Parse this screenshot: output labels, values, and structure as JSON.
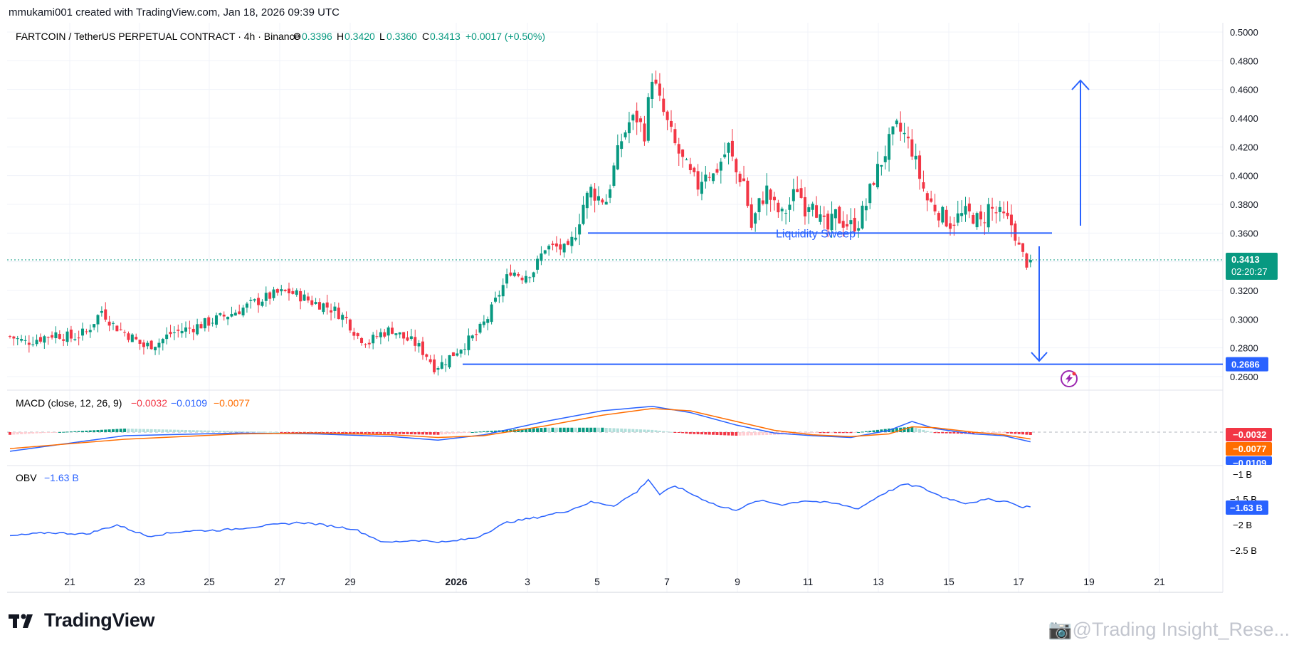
{
  "header": {
    "credit": "mmukami001 created with TradingView.com, Jan 18, 2026 09:39 UTC",
    "symbol": "FARTCOIN / TetherUS PERPETUAL CONTRACT · 4h · Binance",
    "o_label": "O",
    "o_value": "0.3396",
    "h_label": "H",
    "h_value": "0.3420",
    "l_label": "L",
    "l_value": "0.3360",
    "c_label": "C",
    "c_value": "0.3413",
    "change": "+0.0017 (+0.50%)"
  },
  "colors": {
    "up": "#089981",
    "down": "#f23645",
    "blue": "#2962ff",
    "orange": "#ff6d00",
    "macd_up_light": "#b2dfdb",
    "macd_down_light": "#ffcdd2",
    "grid": "#f0f3fa",
    "axis_text": "#131722"
  },
  "annotations": {
    "liquidity_sweep": "Liquidity Sweep",
    "current_price": "0.3413",
    "countdown": "02:20:27",
    "target_price": "0.2686",
    "support_level": 0.36,
    "target_level": 0.2686,
    "lightning_icon": "lightning-icon"
  },
  "macd": {
    "label": "MACD (close, 12, 26, 9)",
    "v1": "−0.0032",
    "v2": "−0.0109",
    "v3": "−0.0077",
    "axis_labels": [
      "−0.0032",
      "−0.0077",
      "−0.0109"
    ]
  },
  "obv": {
    "label": "OBV",
    "value": "−1.63 B",
    "axis_labels": [
      "−1 B",
      "−1.5 B",
      "−1.63 B",
      "−2 B",
      "−2.5 B"
    ]
  },
  "brand": {
    "name": "TradingView",
    "watermark": "@Trading Insight_Rese..."
  },
  "chart_data": {
    "type": "candlestick",
    "price_axis": [
      "0.5000",
      "0.4800",
      "0.4600",
      "0.4400",
      "0.4200",
      "0.4000",
      "0.3800",
      "0.3600",
      "0.3400",
      "0.3200",
      "0.3000",
      "0.2800",
      "0.2600"
    ],
    "ylim": [
      0.256,
      0.502
    ],
    "x_ticks": [
      "21",
      "23",
      "25",
      "27",
      "29",
      "2026",
      "3",
      "5",
      "7",
      "9",
      "11",
      "13",
      "15",
      "17",
      "19",
      "21"
    ],
    "waypoints": [
      [
        0,
        0.288
      ],
      [
        4,
        0.284
      ],
      [
        8,
        0.287
      ],
      [
        12,
        0.29
      ],
      [
        16,
        0.287
      ],
      [
        20,
        0.291
      ],
      [
        24,
        0.306
      ],
      [
        27,
        0.296
      ],
      [
        31,
        0.289
      ],
      [
        35,
        0.281
      ],
      [
        39,
        0.284
      ],
      [
        42,
        0.29
      ],
      [
        46,
        0.293
      ],
      [
        50,
        0.296
      ],
      [
        54,
        0.3
      ],
      [
        58,
        0.304
      ],
      [
        62,
        0.309
      ],
      [
        66,
        0.314
      ],
      [
        70,
        0.318
      ],
      [
        73,
        0.319
      ],
      [
        76,
        0.316
      ],
      [
        79,
        0.312
      ],
      [
        82,
        0.31
      ],
      [
        85,
        0.306
      ],
      [
        88,
        0.3
      ],
      [
        91,
        0.288
      ],
      [
        94,
        0.284
      ],
      [
        97,
        0.29
      ],
      [
        100,
        0.293
      ],
      [
        103,
        0.287
      ],
      [
        106,
        0.283
      ],
      [
        109,
        0.275
      ],
      [
        111,
        0.267
      ],
      [
        113,
        0.269
      ],
      [
        116,
        0.276
      ],
      [
        119,
        0.283
      ],
      [
        122,
        0.289
      ],
      [
        125,
        0.301
      ],
      [
        128,
        0.318
      ],
      [
        131,
        0.334
      ],
      [
        134,
        0.33
      ],
      [
        137,
        0.334
      ],
      [
        140,
        0.35
      ],
      [
        143,
        0.35
      ],
      [
        146,
        0.348
      ],
      [
        148,
        0.362
      ],
      [
        150,
        0.38
      ],
      [
        152,
        0.39
      ],
      [
        154,
        0.385
      ],
      [
        156,
        0.383
      ],
      [
        158,
        0.405
      ],
      [
        160,
        0.425
      ],
      [
        162,
        0.437
      ],
      [
        164,
        0.44
      ],
      [
        166,
        0.43
      ],
      [
        168,
        0.47
      ],
      [
        170,
        0.451
      ],
      [
        172,
        0.436
      ],
      [
        174,
        0.421
      ],
      [
        176,
        0.41
      ],
      [
        178,
        0.4
      ],
      [
        180,
        0.393
      ],
      [
        182,
        0.404
      ],
      [
        184,
        0.4
      ],
      [
        186,
        0.41
      ],
      [
        188,
        0.42
      ],
      [
        190,
        0.402
      ],
      [
        192,
        0.396
      ],
      [
        194,
        0.364
      ],
      [
        196,
        0.38
      ],
      [
        198,
        0.39
      ],
      [
        200,
        0.378
      ],
      [
        202,
        0.372
      ],
      [
        204,
        0.38
      ],
      [
        206,
        0.392
      ],
      [
        208,
        0.378
      ],
      [
        210,
        0.386
      ],
      [
        212,
        0.368
      ],
      [
        214,
        0.362
      ],
      [
        216,
        0.372
      ],
      [
        218,
        0.368
      ],
      [
        220,
        0.365
      ],
      [
        222,
        0.368
      ],
      [
        224,
        0.38
      ],
      [
        226,
        0.398
      ],
      [
        228,
        0.41
      ],
      [
        230,
        0.423
      ],
      [
        232,
        0.433
      ],
      [
        234,
        0.428
      ],
      [
        236,
        0.418
      ],
      [
        238,
        0.399
      ],
      [
        240,
        0.383
      ],
      [
        242,
        0.378
      ],
      [
        244,
        0.372
      ],
      [
        246,
        0.367
      ],
      [
        248,
        0.371
      ],
      [
        250,
        0.373
      ],
      [
        252,
        0.372
      ],
      [
        254,
        0.366
      ],
      [
        256,
        0.378
      ],
      [
        258,
        0.374
      ],
      [
        260,
        0.37
      ],
      [
        262,
        0.366
      ],
      [
        264,
        0.35
      ],
      [
        266,
        0.339
      ],
      [
        267,
        0.3413
      ]
    ],
    "macd_line": [
      [
        0,
        -0.0215
      ],
      [
        30,
        -0.004
      ],
      [
        60,
        -0.001
      ],
      [
        80,
        -0.002
      ],
      [
        100,
        -0.005
      ],
      [
        112,
        -0.009
      ],
      [
        124,
        -0.003
      ],
      [
        140,
        0.012
      ],
      [
        155,
        0.024
      ],
      [
        168,
        0.029
      ],
      [
        178,
        0.022
      ],
      [
        190,
        0.008
      ],
      [
        200,
        -0.001
      ],
      [
        210,
        -0.004
      ],
      [
        220,
        -0.006
      ],
      [
        230,
        0.002
      ],
      [
        236,
        0.012
      ],
      [
        242,
        0.004
      ],
      [
        252,
        -0.002
      ],
      [
        260,
        -0.004
      ],
      [
        267,
        -0.0109
      ]
    ],
    "signal_line": [
      [
        0,
        -0.0185
      ],
      [
        30,
        -0.008
      ],
      [
        60,
        -0.002
      ],
      [
        80,
        -0.001
      ],
      [
        100,
        -0.003
      ],
      [
        112,
        -0.006
      ],
      [
        124,
        -0.004
      ],
      [
        140,
        0.007
      ],
      [
        155,
        0.019
      ],
      [
        168,
        0.0265
      ],
      [
        178,
        0.024
      ],
      [
        190,
        0.012
      ],
      [
        200,
        0.002
      ],
      [
        210,
        -0.003
      ],
      [
        220,
        -0.005
      ],
      [
        230,
        -0.002
      ],
      [
        236,
        0.006
      ],
      [
        242,
        0.005
      ],
      [
        252,
        0.0
      ],
      [
        260,
        -0.003
      ],
      [
        267,
        -0.0077
      ]
    ],
    "obv_line": [
      [
        0,
        -2.22
      ],
      [
        10,
        -2.15
      ],
      [
        20,
        -2.18
      ],
      [
        28,
        -2.0
      ],
      [
        36,
        -2.22
      ],
      [
        46,
        -2.12
      ],
      [
        56,
        -2.1
      ],
      [
        66,
        -2.02
      ],
      [
        76,
        -1.95
      ],
      [
        82,
        -2.0
      ],
      [
        90,
        -2.08
      ],
      [
        98,
        -2.35
      ],
      [
        106,
        -2.3
      ],
      [
        114,
        -2.34
      ],
      [
        122,
        -2.25
      ],
      [
        130,
        -1.95
      ],
      [
        138,
        -1.85
      ],
      [
        146,
        -1.72
      ],
      [
        152,
        -1.55
      ],
      [
        158,
        -1.62
      ],
      [
        164,
        -1.35
      ],
      [
        167,
        -1.1
      ],
      [
        170,
        -1.4
      ],
      [
        174,
        -1.23
      ],
      [
        180,
        -1.45
      ],
      [
        186,
        -1.65
      ],
      [
        190,
        -1.7
      ],
      [
        196,
        -1.52
      ],
      [
        202,
        -1.6
      ],
      [
        208,
        -1.52
      ],
      [
        216,
        -1.58
      ],
      [
        222,
        -1.68
      ],
      [
        228,
        -1.4
      ],
      [
        234,
        -1.2
      ],
      [
        238,
        -1.25
      ],
      [
        244,
        -1.45
      ],
      [
        250,
        -1.57
      ],
      [
        256,
        -1.5
      ],
      [
        262,
        -1.55
      ],
      [
        264,
        -1.65
      ],
      [
        267,
        -1.63
      ]
    ]
  }
}
